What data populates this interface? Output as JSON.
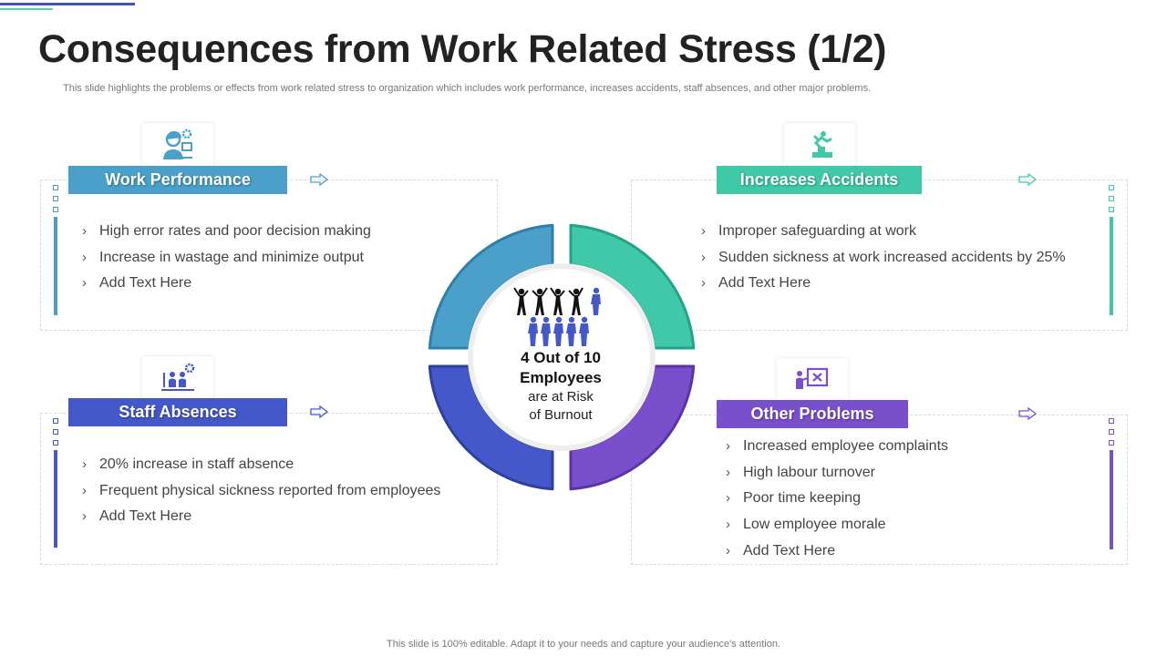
{
  "title": "Consequences from Work Related Stress (1/2)",
  "subtitle": "This slide highlights the problems or effects from work related stress to organization which includes work performance, increases accidents, staff absences, and other major problems.",
  "footer": "This slide is 100% editable. Adapt it to your needs and capture your audience's attention.",
  "center": {
    "line1": "4 Out of 10",
    "line2": "Employees",
    "line3": "are at Risk",
    "line4": "of Burnout",
    "icon": "people-group-icon"
  },
  "colors": {
    "work_performance": "#4aa0c8",
    "increases_accidents": "#3fc9a8",
    "staff_absences": "#4458c9",
    "other_problems": "#7a4fcc"
  },
  "sections": {
    "work_performance": {
      "label": "Work Performance",
      "icon": "worker-gear-icon",
      "items": [
        "High error rates and poor decision making",
        "Increase  in wastage and minimize output",
        "Add Text Here"
      ]
    },
    "increases_accidents": {
      "label": "Increases Accidents",
      "icon": "person-falling-stairs-icon",
      "items": [
        "Improper safeguarding at work",
        "Sudden sickness at work increased accidents by 25%",
        "Add Text Here"
      ]
    },
    "staff_absences": {
      "label": "Staff Absences",
      "icon": "team-gear-icon",
      "items": [
        "20% increase in staff absence",
        "Frequent physical sickness reported from employees",
        "Add Text Here"
      ]
    },
    "other_problems": {
      "label": "Other Problems",
      "icon": "presentation-board-icon",
      "items": [
        "Increased employee complaints",
        "High labour turnover",
        "Poor time keeping",
        "Low employee morale",
        "Add Text Here"
      ]
    }
  }
}
